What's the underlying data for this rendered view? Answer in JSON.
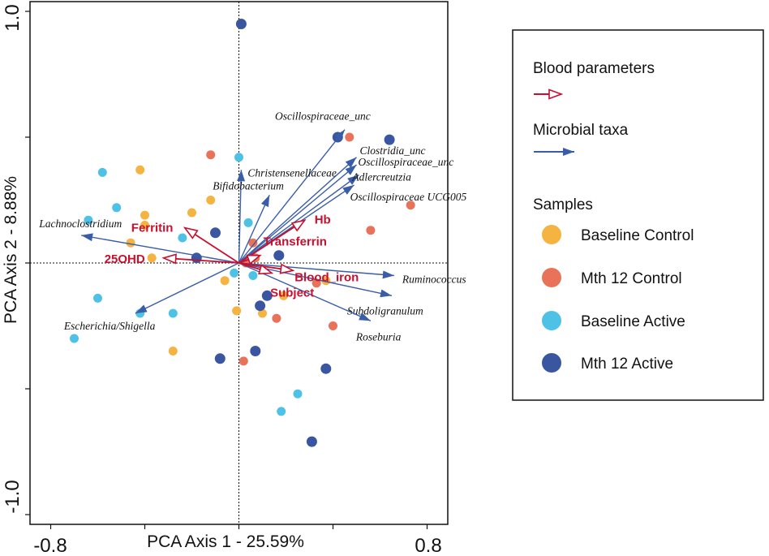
{
  "chart_data": {
    "type": "scatter",
    "subtype": "pca-biplot",
    "xlabel": "PCA Axis 1 - 25.59%",
    "ylabel": "PCA Axis 2 - 8.88%",
    "xlim": [
      -0.85,
      0.85
    ],
    "ylim": [
      -1.02,
      1.02
    ],
    "x_tick_labels": [
      {
        "value": -0.8,
        "label": "-0.8"
      },
      {
        "value": 0.8,
        "label": "0.8"
      }
    ],
    "y_tick_labels": [
      {
        "value": 1.0,
        "label": "1.0"
      },
      {
        "value": -1.0,
        "label": "-1.0"
      }
    ],
    "x_minor_ticks": [
      -0.4,
      0.0,
      0.4
    ],
    "y_minor_ticks": [
      0.5,
      0.0,
      -0.5
    ],
    "colors": {
      "baseline_control": "#f5b342",
      "mth12_control": "#e8735a",
      "baseline_active": "#4ec2e6",
      "mth12_active": "#3a56a0",
      "blood_arrow": "#c8102e",
      "taxa_arrow": "#3a5da8"
    },
    "samples": [
      {
        "name": "Baseline Control",
        "color_key": "baseline_control",
        "size": "small",
        "points": [
          [
            -0.42,
            0.37
          ],
          [
            -0.46,
            0.08
          ],
          [
            -0.4,
            0.19
          ],
          [
            -0.4,
            0.15
          ],
          [
            -0.37,
            0.02
          ],
          [
            -0.12,
            0.25
          ],
          [
            -0.06,
            -0.07
          ],
          [
            -0.01,
            -0.19
          ],
          [
            0.1,
            -0.2
          ],
          [
            0.19,
            -0.13
          ],
          [
            0.37,
            -0.07
          ],
          [
            -0.28,
            -0.35
          ],
          [
            -0.2,
            0.2
          ]
        ]
      },
      {
        "name": "Mth 12 Control",
        "color_key": "mth12_control",
        "size": "small",
        "points": [
          [
            -0.12,
            0.43
          ],
          [
            0.06,
            0.08
          ],
          [
            0.03,
            0.0
          ],
          [
            0.47,
            0.5
          ],
          [
            0.73,
            0.23
          ],
          [
            0.56,
            0.13
          ],
          [
            0.16,
            -0.22
          ],
          [
            0.33,
            -0.08
          ],
          [
            0.4,
            -0.25
          ],
          [
            0.02,
            -0.39
          ],
          [
            0.07,
            0.02
          ]
        ]
      },
      {
        "name": "Baseline Active",
        "color_key": "baseline_active",
        "size": "small",
        "points": [
          [
            0.0,
            0.42
          ],
          [
            -0.58,
            0.36
          ],
          [
            -0.52,
            0.22
          ],
          [
            -0.64,
            0.17
          ],
          [
            -0.24,
            0.1
          ],
          [
            -0.6,
            -0.14
          ],
          [
            -0.42,
            -0.2
          ],
          [
            -0.28,
            -0.2
          ],
          [
            -0.7,
            -0.3
          ],
          [
            0.04,
            0.16
          ],
          [
            0.06,
            -0.05
          ],
          [
            -0.02,
            -0.04
          ],
          [
            0.25,
            -0.52
          ],
          [
            0.18,
            -0.59
          ]
        ]
      },
      {
        "name": "Mth 12 Active",
        "color_key": "mth12_active",
        "size": "large",
        "points": [
          [
            0.01,
            0.95
          ],
          [
            0.42,
            0.5
          ],
          [
            0.64,
            0.49
          ],
          [
            -0.1,
            0.12
          ],
          [
            -0.18,
            0.02
          ],
          [
            0.17,
            0.03
          ],
          [
            0.12,
            -0.13
          ],
          [
            0.09,
            -0.17
          ],
          [
            0.07,
            -0.35
          ],
          [
            -0.08,
            -0.38
          ],
          [
            0.37,
            -0.42
          ],
          [
            0.31,
            -0.71
          ]
        ]
      }
    ],
    "blood_parameters": [
      {
        "name": "Ferritin",
        "x": -0.23,
        "y": 0.14
      },
      {
        "name": "25OHD",
        "x": -0.32,
        "y": 0.02
      },
      {
        "name": "Hb",
        "x": 0.28,
        "y": 0.17
      },
      {
        "name": "Transferrin",
        "x": 0.09,
        "y": 0.03
      },
      {
        "name": "Blood_iron",
        "x": 0.23,
        "y": -0.03
      },
      {
        "name": "Subject",
        "x": 0.14,
        "y": -0.04
      }
    ],
    "microbial_taxa": [
      {
        "name": "Oscillospiraceae_unc",
        "x": 0.45,
        "y": 0.53
      },
      {
        "name": "Clostridia_unc",
        "x": 0.5,
        "y": 0.42
      },
      {
        "name": "Oscillospiraceae_unc",
        "x": 0.5,
        "y": 0.39
      },
      {
        "name": "Adlercreutzia",
        "x": 0.51,
        "y": 0.35
      },
      {
        "name": "Oscillospiraceae UCG005",
        "x": 0.49,
        "y": 0.31
      },
      {
        "name": "Christensenellaceae",
        "x": 0.01,
        "y": 0.37
      },
      {
        "name": "Bifidobacterium",
        "x": 0.13,
        "y": 0.27
      },
      {
        "name": "Lachnoclostridium",
        "x": -0.67,
        "y": 0.11
      },
      {
        "name": "Escherichia/Shigella",
        "x": -0.44,
        "y": -0.2
      },
      {
        "name": "Ruminococcus",
        "x": 0.66,
        "y": -0.05
      },
      {
        "name": "Subdoligranulum",
        "x": 0.65,
        "y": -0.13
      },
      {
        "name": "Roseburia",
        "x": 0.56,
        "y": -0.23
      }
    ],
    "legend": {
      "position": "right",
      "blood_title": "Blood parameters",
      "taxa_title": "Microbial taxa",
      "samples_title": "Samples",
      "entries": [
        "Baseline Control",
        "Mth 12 Control",
        "Baseline Active",
        "Mth 12 Active"
      ]
    }
  }
}
